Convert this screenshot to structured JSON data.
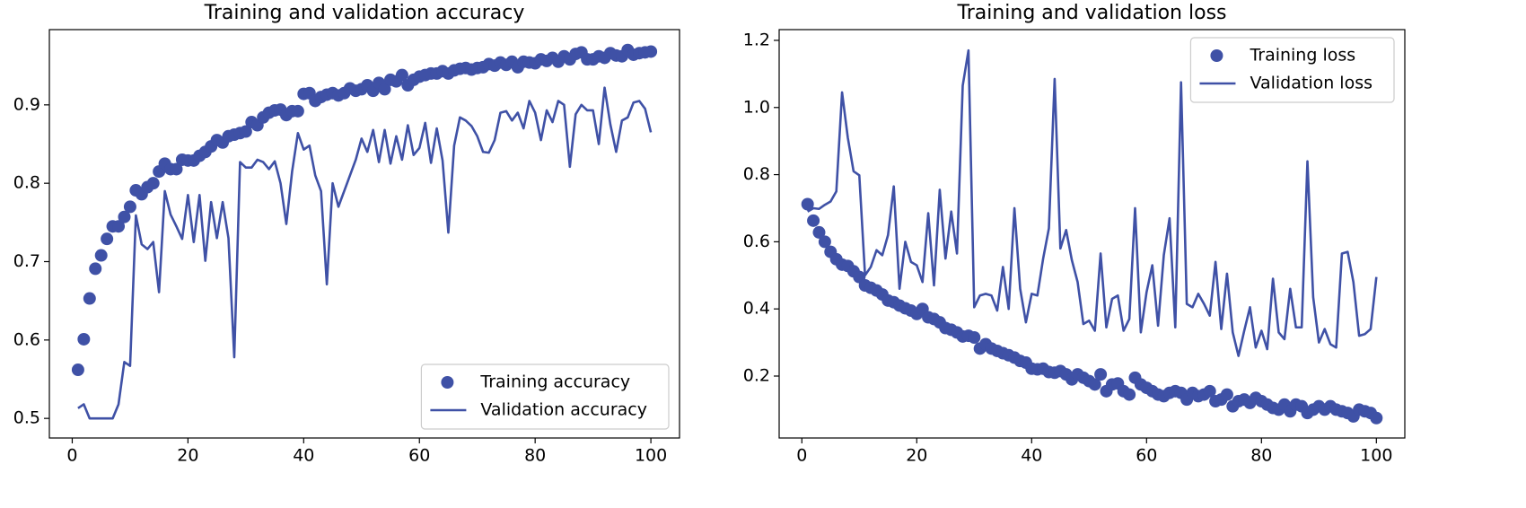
{
  "chart_data": [
    {
      "type": "line",
      "title": "Training and validation accuracy",
      "x": [
        1,
        2,
        3,
        4,
        5,
        6,
        7,
        8,
        9,
        10,
        11,
        12,
        13,
        14,
        15,
        16,
        17,
        18,
        19,
        20,
        21,
        22,
        23,
        24,
        25,
        26,
        27,
        28,
        29,
        30,
        31,
        32,
        33,
        34,
        35,
        36,
        37,
        38,
        39,
        40,
        41,
        42,
        43,
        44,
        45,
        46,
        47,
        48,
        49,
        50,
        51,
        52,
        53,
        54,
        55,
        56,
        57,
        58,
        59,
        60,
        61,
        62,
        63,
        64,
        65,
        66,
        67,
        68,
        69,
        70,
        71,
        72,
        73,
        74,
        75,
        76,
        77,
        78,
        79,
        80,
        81,
        82,
        83,
        84,
        85,
        86,
        87,
        88,
        89,
        90,
        91,
        92,
        93,
        94,
        95,
        96,
        97,
        98,
        99,
        100
      ],
      "series": [
        {
          "name": "Training accuracy",
          "color": "#3f51a6",
          "marker": "o",
          "values": [
            0.562,
            0.601,
            0.653,
            0.691,
            0.708,
            0.729,
            0.745,
            0.745,
            0.757,
            0.77,
            0.791,
            0.786,
            0.795,
            0.8,
            0.815,
            0.825,
            0.818,
            0.818,
            0.83,
            0.829,
            0.829,
            0.835,
            0.84,
            0.847,
            0.855,
            0.852,
            0.86,
            0.862,
            0.864,
            0.866,
            0.878,
            0.874,
            0.884,
            0.89,
            0.893,
            0.894,
            0.887,
            0.892,
            0.892,
            0.914,
            0.915,
            0.905,
            0.91,
            0.913,
            0.915,
            0.912,
            0.915,
            0.921,
            0.918,
            0.92,
            0.925,
            0.918,
            0.928,
            0.92,
            0.932,
            0.93,
            0.938,
            0.925,
            0.932,
            0.936,
            0.938,
            0.94,
            0.94,
            0.943,
            0.94,
            0.944,
            0.946,
            0.947,
            0.945,
            0.947,
            0.948,
            0.952,
            0.95,
            0.954,
            0.951,
            0.955,
            0.948,
            0.955,
            0.954,
            0.953,
            0.958,
            0.956,
            0.96,
            0.955,
            0.962,
            0.958,
            0.965,
            0.967,
            0.958,
            0.958,
            0.962,
            0.96,
            0.966,
            0.963,
            0.962,
            0.97,
            0.964,
            0.966,
            0.967,
            0.968
          ]
        },
        {
          "name": "Validation accuracy",
          "color": "#3f51a6",
          "linestyle": "-",
          "values": [
            0.513,
            0.518,
            0.5,
            0.5,
            0.5,
            0.5,
            0.5,
            0.518,
            0.572,
            0.567,
            0.759,
            0.722,
            0.716,
            0.725,
            0.661,
            0.79,
            0.76,
            0.745,
            0.729,
            0.785,
            0.725,
            0.785,
            0.701,
            0.776,
            0.73,
            0.776,
            0.73,
            0.578,
            0.827,
            0.82,
            0.82,
            0.83,
            0.827,
            0.818,
            0.828,
            0.8,
            0.748,
            0.815,
            0.864,
            0.843,
            0.848,
            0.81,
            0.79,
            0.671,
            0.8,
            0.77,
            0.79,
            0.81,
            0.83,
            0.857,
            0.84,
            0.868,
            0.827,
            0.868,
            0.825,
            0.86,
            0.83,
            0.874,
            0.836,
            0.845,
            0.877,
            0.826,
            0.87,
            0.829,
            0.737,
            0.848,
            0.884,
            0.88,
            0.873,
            0.86,
            0.84,
            0.839,
            0.855,
            0.89,
            0.892,
            0.88,
            0.89,
            0.87,
            0.905,
            0.89,
            0.855,
            0.893,
            0.878,
            0.905,
            0.9,
            0.821,
            0.888,
            0.9,
            0.893,
            0.893,
            0.85,
            0.922,
            0.875,
            0.84,
            0.88,
            0.884,
            0.903,
            0.905,
            0.895,
            0.865
          ]
        }
      ],
      "xlim": [
        -3.95,
        104.95
      ],
      "xticks": [
        0,
        20,
        40,
        60,
        80,
        100
      ],
      "ylim": [
        0.475,
        0.996
      ],
      "yticks": [
        0.5,
        0.6,
        0.7,
        0.8,
        0.9
      ],
      "legend": "lower right"
    },
    {
      "type": "line",
      "title": "Training and validation loss",
      "x": [
        1,
        2,
        3,
        4,
        5,
        6,
        7,
        8,
        9,
        10,
        11,
        12,
        13,
        14,
        15,
        16,
        17,
        18,
        19,
        20,
        21,
        22,
        23,
        24,
        25,
        26,
        27,
        28,
        29,
        30,
        31,
        32,
        33,
        34,
        35,
        36,
        37,
        38,
        39,
        40,
        41,
        42,
        43,
        44,
        45,
        46,
        47,
        48,
        49,
        50,
        51,
        52,
        53,
        54,
        55,
        56,
        57,
        58,
        59,
        60,
        61,
        62,
        63,
        64,
        65,
        66,
        67,
        68,
        69,
        70,
        71,
        72,
        73,
        74,
        75,
        76,
        77,
        78,
        79,
        80,
        81,
        82,
        83,
        84,
        85,
        86,
        87,
        88,
        89,
        90,
        91,
        92,
        93,
        94,
        95,
        96,
        97,
        98,
        99,
        100
      ],
      "series": [
        {
          "name": "Training loss",
          "color": "#3f51a6",
          "marker": "o",
          "values": [
            0.712,
            0.663,
            0.628,
            0.6,
            0.57,
            0.548,
            0.532,
            0.528,
            0.512,
            0.495,
            0.47,
            0.463,
            0.455,
            0.443,
            0.425,
            0.42,
            0.41,
            0.402,
            0.395,
            0.385,
            0.4,
            0.375,
            0.37,
            0.36,
            0.343,
            0.338,
            0.33,
            0.318,
            0.32,
            0.315,
            0.282,
            0.295,
            0.282,
            0.275,
            0.268,
            0.262,
            0.255,
            0.245,
            0.24,
            0.222,
            0.22,
            0.222,
            0.212,
            0.21,
            0.215,
            0.205,
            0.19,
            0.205,
            0.195,
            0.185,
            0.175,
            0.205,
            0.155,
            0.175,
            0.178,
            0.155,
            0.145,
            0.195,
            0.175,
            0.165,
            0.155,
            0.145,
            0.14,
            0.15,
            0.155,
            0.15,
            0.13,
            0.15,
            0.14,
            0.145,
            0.155,
            0.125,
            0.13,
            0.145,
            0.11,
            0.125,
            0.13,
            0.12,
            0.135,
            0.125,
            0.115,
            0.105,
            0.1,
            0.115,
            0.095,
            0.115,
            0.11,
            0.09,
            0.1,
            0.11,
            0.1,
            0.11,
            0.1,
            0.095,
            0.09,
            0.08,
            0.1,
            0.095,
            0.09,
            0.075
          ]
        },
        {
          "name": "Validation loss",
          "color": "#3f51a6",
          "linestyle": "-",
          "values": [
            0.69,
            0.7,
            0.698,
            0.71,
            0.72,
            0.75,
            1.045,
            0.91,
            0.81,
            0.798,
            0.5,
            0.525,
            0.575,
            0.56,
            0.62,
            0.765,
            0.46,
            0.6,
            0.54,
            0.53,
            0.48,
            0.685,
            0.47,
            0.755,
            0.55,
            0.69,
            0.565,
            1.065,
            1.17,
            0.405,
            0.44,
            0.445,
            0.44,
            0.395,
            0.525,
            0.4,
            0.7,
            0.46,
            0.36,
            0.445,
            0.44,
            0.55,
            0.64,
            1.085,
            0.58,
            0.635,
            0.545,
            0.48,
            0.355,
            0.365,
            0.335,
            0.565,
            0.345,
            0.43,
            0.44,
            0.335,
            0.37,
            0.7,
            0.33,
            0.45,
            0.53,
            0.35,
            0.56,
            0.67,
            0.345,
            1.075,
            0.415,
            0.405,
            0.445,
            0.415,
            0.38,
            0.54,
            0.34,
            0.505,
            0.33,
            0.26,
            0.335,
            0.405,
            0.285,
            0.335,
            0.28,
            0.49,
            0.33,
            0.31,
            0.46,
            0.345,
            0.345,
            0.84,
            0.435,
            0.3,
            0.34,
            0.295,
            0.285,
            0.565,
            0.57,
            0.48,
            0.32,
            0.325,
            0.34,
            0.495
          ]
        }
      ],
      "xlim": [
        -3.95,
        104.95
      ],
      "xticks": [
        0,
        20,
        40,
        60,
        80,
        100
      ],
      "ylim": [
        0.0155,
        1.232
      ],
      "yticks": [
        0.2,
        0.4,
        0.6,
        0.8,
        {
          "value": 1,
          "label": "1.0"
        },
        1.2
      ],
      "legend": "upper right"
    }
  ]
}
